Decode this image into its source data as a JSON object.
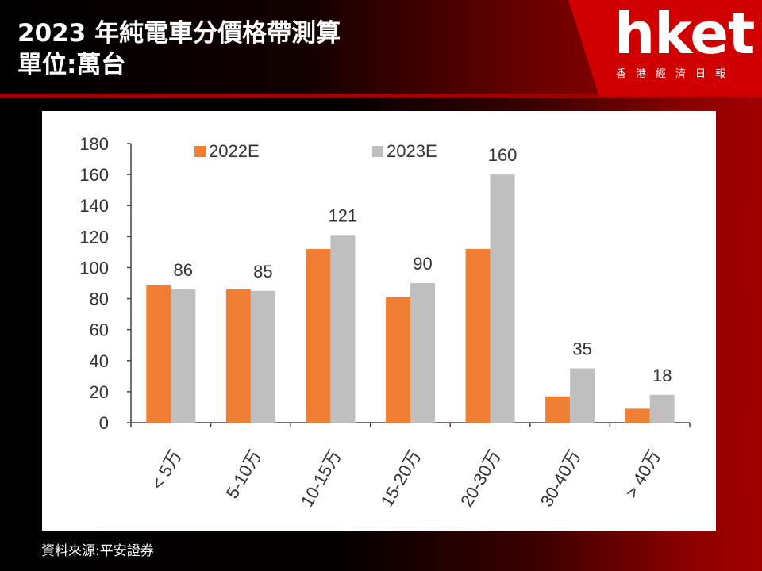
{
  "title_line1": "2023 年純電車分價格帶測算",
  "title_line2": "單位:萬台",
  "logo": {
    "text": "hket",
    "subtitle": "香港經濟日報"
  },
  "source": "資料來源:平安證券",
  "colors": {
    "series_2022": "#f07f33",
    "series_2023": "#bfbfbf",
    "brand_red": "#d00000"
  },
  "chart_data": {
    "type": "bar",
    "categories": [
      "< 5万",
      "5-10万",
      "10-15万",
      "15-20万",
      "20-30万",
      "30-40万",
      "> 40万"
    ],
    "series": [
      {
        "name": "2022E",
        "values": [
          89,
          86,
          112,
          81,
          112,
          17,
          9
        ]
      },
      {
        "name": "2023E",
        "values": [
          86,
          85,
          121,
          90,
          160,
          35,
          18
        ]
      }
    ],
    "data_labels_series": "2023E",
    "y_ticks": [
      0,
      20,
      40,
      60,
      80,
      100,
      120,
      140,
      160,
      180
    ],
    "ylim": [
      0,
      180
    ],
    "legend": "top",
    "grid": false
  }
}
